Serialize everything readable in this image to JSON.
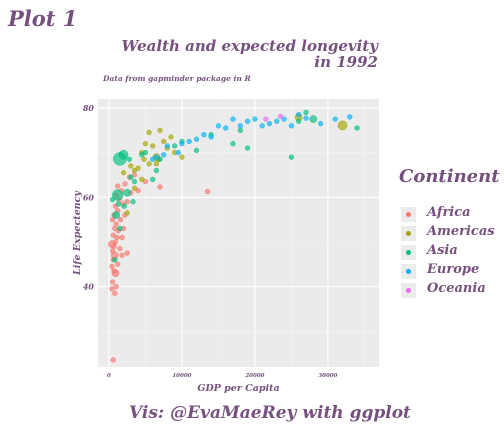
{
  "plot_label": "Plot 1",
  "caption": "Vis: @EvaMaeRey with ggplot",
  "legend": {
    "title": "Continent",
    "items": [
      {
        "label": "Africa",
        "color": "#F8766D"
      },
      {
        "label": "Americas",
        "color": "#A3A500"
      },
      {
        "label": "Asia",
        "color": "#00BF7D"
      },
      {
        "label": "Europe",
        "color": "#00B0F6"
      },
      {
        "label": "Oceania",
        "color": "#E76BF3"
      }
    ]
  },
  "chart_data": {
    "type": "scatter",
    "title": [
      "Wealth and expected longevity",
      "in 1992"
    ],
    "subtitle": "Data from gapminder package in R",
    "xlabel": "GDP per Capita",
    "ylabel": "Life Expectency",
    "xlim": [
      -1500,
      37000
    ],
    "ylim": [
      22,
      82
    ],
    "x_ticks": [
      {
        "value": 0,
        "label": "0"
      },
      {
        "value": 10000,
        "label": "10000"
      },
      {
        "value": 20000,
        "label": "20000"
      },
      {
        "value": 30000,
        "label": "30000"
      }
    ],
    "y_ticks": [
      {
        "value": 40,
        "label": "40"
      },
      {
        "value": 60,
        "label": "60"
      },
      {
        "value": 80,
        "label": "80"
      }
    ],
    "grid": true,
    "legend_position": "right",
    "size_encoding": "population",
    "series": [
      {
        "name": "Africa",
        "color": "#F8766D",
        "points": [
          [
            600,
            23.6,
            1
          ],
          [
            400,
            39.5,
            1
          ],
          [
            800,
            38.5,
            1
          ],
          [
            500,
            41,
            1
          ],
          [
            1000,
            40,
            1
          ],
          [
            700,
            43.5,
            1
          ],
          [
            900,
            43,
            2
          ],
          [
            400,
            44.5,
            1
          ],
          [
            600,
            46,
            1
          ],
          [
            1200,
            45,
            1
          ],
          [
            800,
            47,
            2
          ],
          [
            500,
            48,
            1
          ],
          [
            700,
            49,
            1
          ],
          [
            1500,
            48.5,
            1
          ],
          [
            400,
            49.5,
            2
          ],
          [
            900,
            50,
            1
          ],
          [
            1100,
            51,
            1
          ],
          [
            600,
            51.5,
            1
          ],
          [
            1800,
            51,
            1
          ],
          [
            1300,
            52.5,
            1
          ],
          [
            800,
            53,
            1
          ],
          [
            2000,
            53,
            1
          ],
          [
            1000,
            54,
            1
          ],
          [
            500,
            55,
            1
          ],
          [
            1600,
            55,
            1
          ],
          [
            700,
            56,
            1
          ],
          [
            2200,
            56,
            1
          ],
          [
            1200,
            57,
            1
          ],
          [
            900,
            58,
            1
          ],
          [
            1900,
            58.5,
            1
          ],
          [
            1400,
            59.5,
            1
          ],
          [
            2500,
            59,
            1
          ],
          [
            1000,
            60.5,
            1
          ],
          [
            1700,
            61.5,
            1
          ],
          [
            3000,
            61,
            1
          ],
          [
            1200,
            62.5,
            1
          ],
          [
            4000,
            61.5,
            1
          ],
          [
            2200,
            63,
            1
          ],
          [
            2800,
            64.5,
            1
          ],
          [
            5000,
            63.5,
            1
          ],
          [
            3500,
            65,
            1
          ],
          [
            7000,
            62.3,
            1
          ],
          [
            13500,
            61.3,
            1
          ],
          [
            1800,
            47,
            1
          ],
          [
            2500,
            47.5,
            1
          ]
        ]
      },
      {
        "name": "Americas",
        "color": "#A3A500",
        "points": [
          [
            32000,
            76.1,
            3
          ],
          [
            26000,
            77.9,
            2
          ],
          [
            4000,
            66.5,
            1
          ],
          [
            4500,
            64,
            1
          ],
          [
            5500,
            67.5,
            1
          ],
          [
            6500,
            69,
            2
          ],
          [
            6000,
            71.5,
            1
          ],
          [
            5000,
            72,
            1
          ],
          [
            7500,
            72.5,
            1
          ],
          [
            8000,
            71,
            1
          ],
          [
            7000,
            75,
            1
          ],
          [
            5500,
            74.5,
            1
          ],
          [
            4500,
            70,
            1
          ],
          [
            3000,
            67,
            1
          ],
          [
            3500,
            66,
            1
          ],
          [
            9000,
            70,
            1
          ],
          [
            10000,
            69,
            1
          ],
          [
            2500,
            56.5,
            1
          ],
          [
            3500,
            62,
            1
          ],
          [
            2000,
            65.5,
            1
          ],
          [
            6800,
            68.5,
            1
          ],
          [
            8500,
            73.5,
            1
          ],
          [
            4800,
            68.5,
            1
          ],
          [
            6500,
            67.5,
            1
          ]
        ]
      },
      {
        "name": "Asia",
        "color": "#00BF7D",
        "points": [
          [
            1500,
            68.6,
            5
          ],
          [
            2000,
            69.5,
            3
          ],
          [
            1200,
            60.5,
            4
          ],
          [
            2500,
            61,
            2
          ],
          [
            1000,
            56,
            2
          ],
          [
            1500,
            53,
            1
          ],
          [
            800,
            46,
            1
          ],
          [
            3000,
            64.5,
            1
          ],
          [
            3500,
            63.5,
            1
          ],
          [
            2800,
            68.5,
            1
          ],
          [
            4500,
            69.5,
            1
          ],
          [
            5000,
            70,
            1
          ],
          [
            6000,
            64,
            1
          ],
          [
            6500,
            66,
            1
          ],
          [
            9000,
            71.5,
            1
          ],
          [
            12000,
            70.5,
            1
          ],
          [
            14000,
            74,
            1
          ],
          [
            18000,
            75,
            1
          ],
          [
            17000,
            72,
            1
          ],
          [
            19000,
            71,
            1
          ],
          [
            25000,
            69,
            1
          ],
          [
            26000,
            77,
            1
          ],
          [
            27000,
            79,
            1
          ],
          [
            28000,
            77.5,
            2
          ],
          [
            34000,
            75.5,
            1
          ],
          [
            1300,
            58.5,
            1
          ],
          [
            3300,
            59,
            1
          ],
          [
            2100,
            58,
            1
          ],
          [
            500,
            59.5,
            1
          ],
          [
            7000,
            68.5,
            1
          ],
          [
            10000,
            72.5,
            1
          ]
        ]
      },
      {
        "name": "Europe",
        "color": "#00B0F6",
        "points": [
          [
            8000,
            71.5,
            1
          ],
          [
            9500,
            70,
            1
          ],
          [
            6500,
            69,
            1
          ],
          [
            7500,
            69.5,
            1
          ],
          [
            10000,
            72,
            1
          ],
          [
            12000,
            73,
            1
          ],
          [
            13000,
            74,
            1
          ],
          [
            15000,
            76,
            1
          ],
          [
            16000,
            75.5,
            1
          ],
          [
            17000,
            77.5,
            1
          ],
          [
            18000,
            76,
            1
          ],
          [
            19000,
            77,
            1
          ],
          [
            20000,
            77.5,
            1
          ],
          [
            21000,
            76,
            1
          ],
          [
            22000,
            76.5,
            1
          ],
          [
            23000,
            77,
            1
          ],
          [
            24000,
            77.5,
            1
          ],
          [
            25000,
            76,
            1
          ],
          [
            26000,
            78.5,
            1
          ],
          [
            27000,
            77.7,
            1
          ],
          [
            29000,
            76.5,
            1
          ],
          [
            31000,
            77.5,
            1
          ],
          [
            33000,
            78,
            1
          ],
          [
            11000,
            72.5,
            1
          ],
          [
            14000,
            73.5,
            1
          ],
          [
            6000,
            68.5,
            1
          ]
        ]
      },
      {
        "name": "Oceania",
        "color": "#E76BF3",
        "points": [
          [
            21500,
            77.5,
            1
          ],
          [
            23500,
            78.1,
            1
          ]
        ]
      }
    ]
  }
}
